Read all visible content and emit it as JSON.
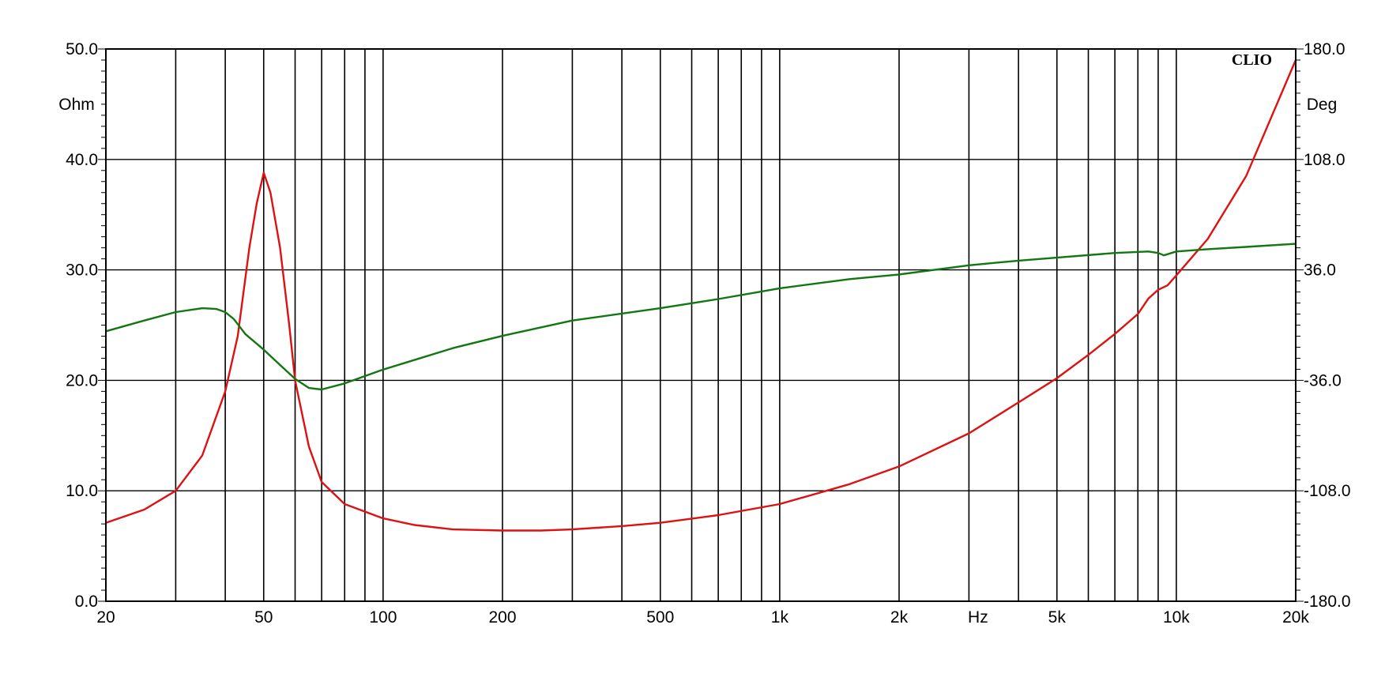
{
  "brand": "CLIO",
  "chart_data": {
    "type": "line",
    "title": "",
    "xlabel": "Hz",
    "y_left_label": "Ohm",
    "y_right_label": "Deg",
    "x_scale": "log",
    "xlim": [
      20,
      20000
    ],
    "ylim_left": [
      0,
      50
    ],
    "ylim_right": [
      -180,
      180
    ],
    "grid": true,
    "x_ticks": [
      {
        "value": 20,
        "label": "20"
      },
      {
        "value": 50,
        "label": "50"
      },
      {
        "value": 100,
        "label": "100"
      },
      {
        "value": 200,
        "label": "200"
      },
      {
        "value": 500,
        "label": "500"
      },
      {
        "value": 1000,
        "label": "1k"
      },
      {
        "value": 2000,
        "label": "2k"
      },
      {
        "value": 5000,
        "label": "5k"
      },
      {
        "value": 10000,
        "label": "10k"
      },
      {
        "value": 20000,
        "label": "20k"
      }
    ],
    "y_left_ticks": [
      {
        "value": 0,
        "label": "0.0"
      },
      {
        "value": 10,
        "label": "10.0"
      },
      {
        "value": 20,
        "label": "20.0"
      },
      {
        "value": 30,
        "label": "30.0"
      },
      {
        "value": 40,
        "label": "40.0"
      },
      {
        "value": 50,
        "label": "50.0"
      }
    ],
    "y_right_ticks": [
      {
        "value": -180,
        "label": "-180.0"
      },
      {
        "value": -108,
        "label": "-108.0"
      },
      {
        "value": -36,
        "label": "-36.0"
      },
      {
        "value": 36,
        "label": "36.0"
      },
      {
        "value": 108,
        "label": "108.0"
      },
      {
        "value": 180,
        "label": "180.0"
      }
    ],
    "series": [
      {
        "axis": "left",
        "color": "#dd1111",
        "points": [
          [
            20,
            7.1
          ],
          [
            25,
            8.3
          ],
          [
            30,
            10.0
          ],
          [
            35,
            13.2
          ],
          [
            40,
            19.0
          ],
          [
            43,
            24.0
          ],
          [
            46,
            32.0
          ],
          [
            48,
            36.0
          ],
          [
            50,
            38.8
          ],
          [
            52,
            37.0
          ],
          [
            55,
            32.0
          ],
          [
            58,
            25.0
          ],
          [
            60,
            20.0
          ],
          [
            65,
            14.0
          ],
          [
            70,
            10.8
          ],
          [
            80,
            8.8
          ],
          [
            100,
            7.5
          ],
          [
            120,
            6.9
          ],
          [
            150,
            6.5
          ],
          [
            200,
            6.4
          ],
          [
            250,
            6.4
          ],
          [
            300,
            6.5
          ],
          [
            400,
            6.8
          ],
          [
            500,
            7.1
          ],
          [
            700,
            7.8
          ],
          [
            1000,
            8.8
          ],
          [
            1500,
            10.6
          ],
          [
            2000,
            12.2
          ],
          [
            3000,
            15.2
          ],
          [
            4000,
            18.0
          ],
          [
            5000,
            20.2
          ],
          [
            6000,
            22.3
          ],
          [
            7000,
            24.2
          ],
          [
            8000,
            26.0
          ],
          [
            8500,
            27.4
          ],
          [
            9000,
            28.2
          ],
          [
            9500,
            28.6
          ],
          [
            10000,
            29.5
          ],
          [
            12000,
            32.8
          ],
          [
            15000,
            38.5
          ],
          [
            20000,
            49.0
          ]
        ]
      },
      {
        "axis": "right",
        "color": "#117711",
        "points": [
          [
            20,
            -4.0
          ],
          [
            25,
            3.0
          ],
          [
            30,
            8.5
          ],
          [
            35,
            11.0
          ],
          [
            38,
            10.5
          ],
          [
            40,
            8.5
          ],
          [
            42,
            4.0
          ],
          [
            45,
            -6.0
          ],
          [
            50,
            -16.0
          ],
          [
            55,
            -26.0
          ],
          [
            60,
            -35.0
          ],
          [
            65,
            -41.0
          ],
          [
            70,
            -42.0
          ],
          [
            80,
            -38.0
          ],
          [
            100,
            -29.0
          ],
          [
            150,
            -15.0
          ],
          [
            200,
            -7.0
          ],
          [
            300,
            3.0
          ],
          [
            500,
            11.0
          ],
          [
            700,
            17.0
          ],
          [
            1000,
            24.0
          ],
          [
            1500,
            30.0
          ],
          [
            2000,
            33.0
          ],
          [
            3000,
            39.0
          ],
          [
            4000,
            42.0
          ],
          [
            5000,
            44.0
          ],
          [
            7000,
            47.0
          ],
          [
            8500,
            48.0
          ],
          [
            9000,
            47.0
          ],
          [
            9300,
            45.5
          ],
          [
            10000,
            48.0
          ],
          [
            12000,
            49.5
          ],
          [
            15000,
            51.0
          ],
          [
            20000,
            53.0
          ]
        ]
      }
    ]
  }
}
